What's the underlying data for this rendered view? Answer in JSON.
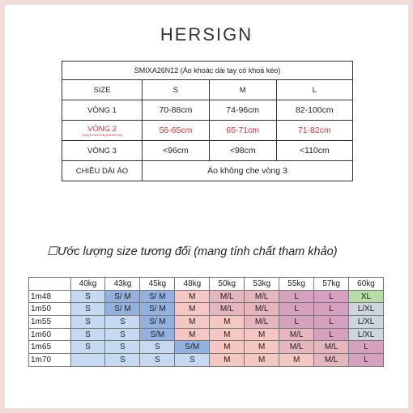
{
  "brand": "HERSIGN",
  "size_table": {
    "title": "SMIXA26N12 (Áo khoác dài tay có khoá kéo)",
    "header": [
      "SIZE",
      "S",
      "M",
      "L"
    ],
    "rows": [
      {
        "label": "VÒNG 1",
        "note": "",
        "values": [
          "70-88cm",
          "74-96cm",
          "82-100cm"
        ],
        "highlight": false
      },
      {
        "label": "VÒNG 2",
        "note": "(vòng eo nhỏ nhất phía trên rốn)",
        "values": [
          "56-65cm",
          "65-71cm",
          "71-82cm"
        ],
        "highlight": true
      },
      {
        "label": "VÒNG 3",
        "note": "",
        "values": [
          "<96cm",
          "<98cm",
          "<110cm"
        ],
        "highlight": false
      }
    ],
    "length_label": "CHIỀU DÀI ÁO",
    "length_value": "Áo không che vòng 3"
  },
  "caption": "Ước lượng size tương đối (mang tính chất tham khảo)",
  "fit_table": {
    "weights": [
      "40kg",
      "43kg",
      "45kg",
      "48kg",
      "50kg",
      "53kg",
      "55kg",
      "57kg",
      "60kg"
    ],
    "rows": [
      {
        "height": "1m48",
        "cells": [
          "S",
          "S/ M",
          "S/ M",
          "M",
          "M/L",
          "M/L",
          "L",
          "L",
          "XL"
        ]
      },
      {
        "height": "1m50",
        "cells": [
          "S",
          "S/ M",
          "S/ M",
          "M",
          "M/L",
          "M/L",
          "L",
          "L",
          "L/XL"
        ]
      },
      {
        "height": "1m55",
        "cells": [
          "S",
          "S",
          "S/ M",
          "M",
          "M",
          "M/L",
          "L",
          "L",
          "L/XL"
        ]
      },
      {
        "height": "1m60",
        "cells": [
          "S",
          "S",
          "S/M",
          "M",
          "M",
          "M",
          "M/L",
          "L",
          "L/XL"
        ]
      },
      {
        "height": "1m65",
        "cells": [
          "S",
          "S",
          "S",
          "S/M",
          "M",
          "M",
          "M/L",
          "M/L",
          "L"
        ]
      },
      {
        "height": "1m70",
        "cells": [
          "",
          "S",
          "S",
          "S",
          "M",
          "M",
          "M",
          "M/L",
          "L"
        ]
      }
    ],
    "colors": {
      "S": "#c5d9f1",
      "S/ M": "#92b1df",
      "S/M": "#92b1df",
      "M": "#f4c7c3",
      "M/L": "#e6b6bf",
      "L": "#d6a1bf",
      "XL": "#b8dca6",
      "L/XL": "#cdd6de",
      "": "#c5d9f1"
    }
  }
}
